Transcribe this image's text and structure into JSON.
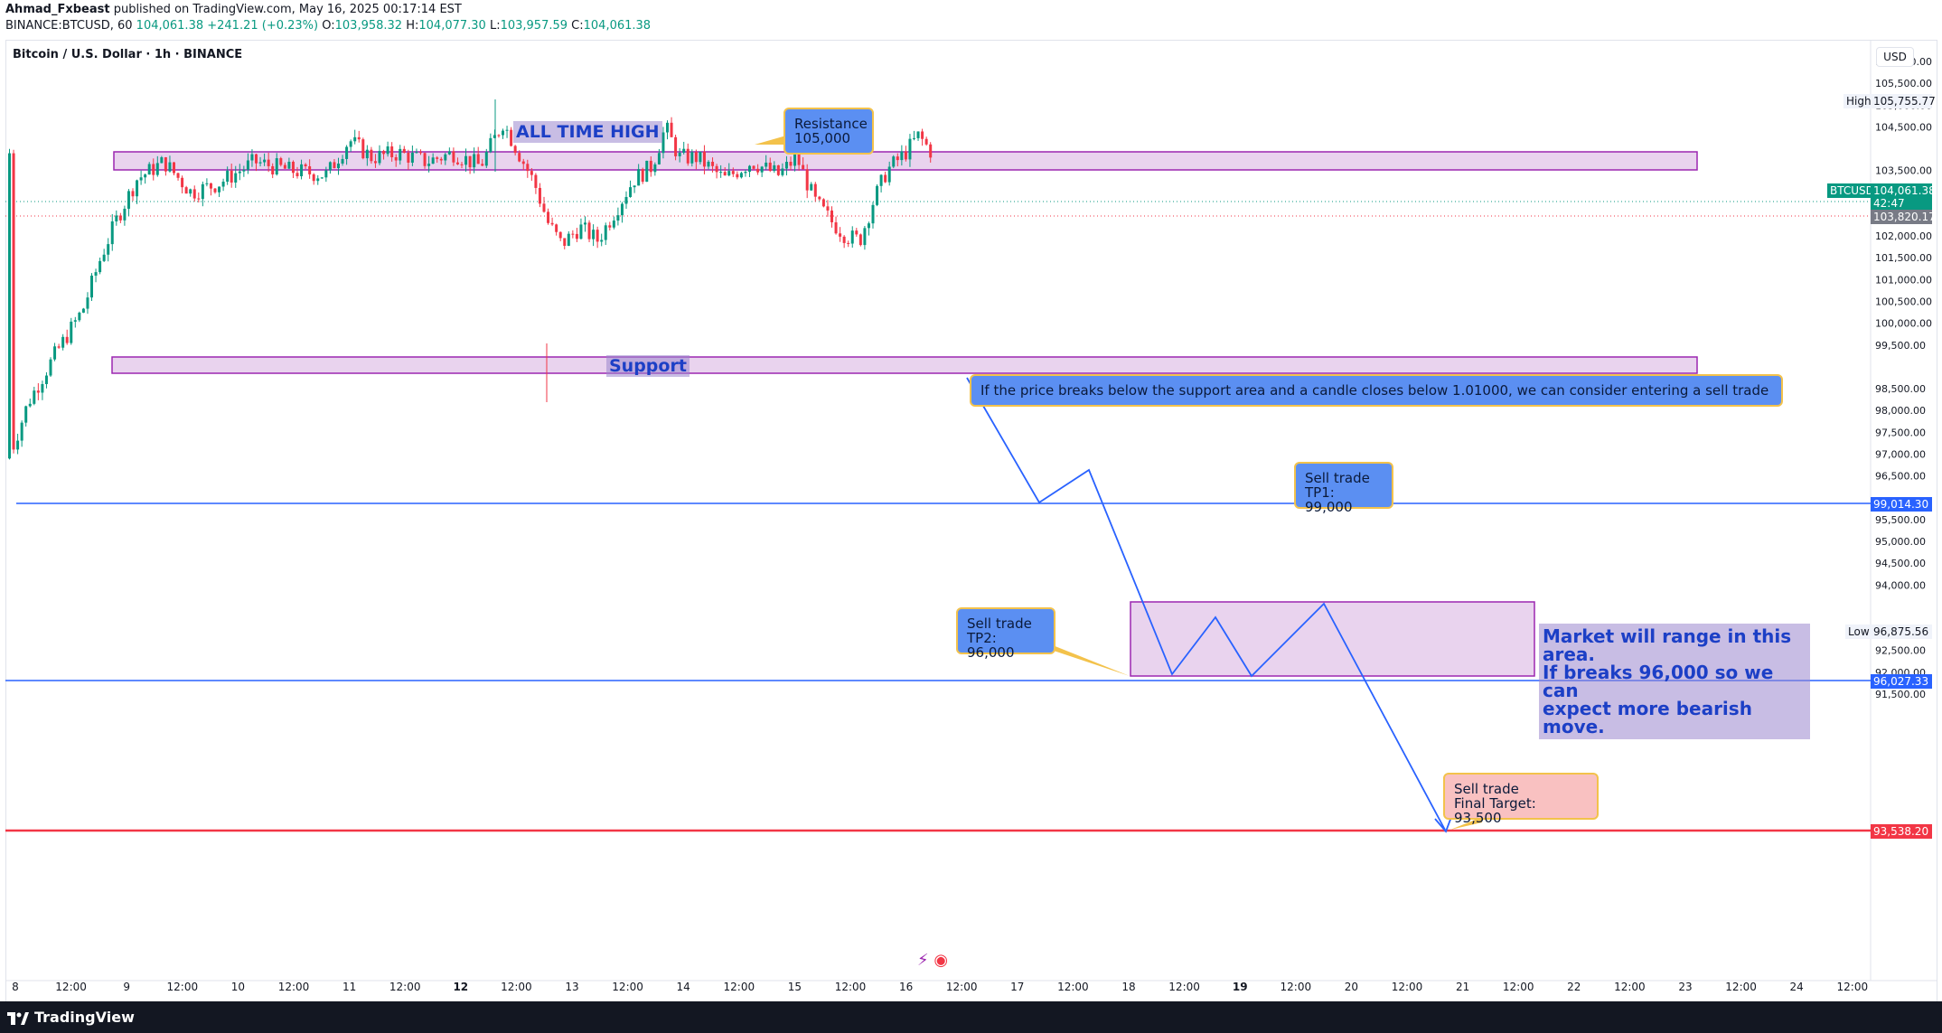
{
  "header": {
    "author": "Ahmad_Fxbeast",
    "published_text": "published on TradingView.com, May 16, 2025 00:17:14 EST",
    "symbol_line": "BINANCE:BTCUSD, 60",
    "last": "104,061.38",
    "change": "+241.21 (+0.23%)",
    "open_label": "O:",
    "open": "103,958.32",
    "high_label": "H:",
    "high": "104,077.30",
    "low_label": "L:",
    "low": "103,957.59",
    "close_label": "C:",
    "close": "104,061.38"
  },
  "chart_title": "Bitcoin / U.S. Dollar · 1h · BINANCE",
  "currency_button": "USD",
  "price_axis": {
    "ticks": [
      "106,000.00",
      "105,500.00",
      "105,000.00",
      "104,500.00",
      "103,500.00",
      "103,000.00",
      "102,500.00",
      "102,000.00",
      "101,500.00",
      "101,000.00",
      "100,500.00",
      "100,000.00",
      "99,500.00",
      "98,500.00",
      "98,000.00",
      "97,500.00",
      "97,000.00",
      "96,500.00",
      "95,500.00",
      "95,000.00",
      "94,500.00",
      "94,000.00",
      "93,000.00",
      "92,500.00",
      "92,000.00",
      "91,500.00"
    ],
    "high_label": "High",
    "high_value": "105,755.77",
    "low_label": "Low",
    "low_value": "96,875.56",
    "current_price": "104,061.38",
    "countdown": "42:47",
    "prev_close": "103,820.17",
    "level_tp1": "99,014.30",
    "level_tp2": "96,027.33",
    "level_final": "93,538.20",
    "symbol_tag": "BTCUSD"
  },
  "time_axis": [
    "8",
    "12:00",
    "9",
    "12:00",
    "10",
    "12:00",
    "11",
    "12:00",
    "12",
    "12:00",
    "13",
    "12:00",
    "14",
    "12:00",
    "15",
    "12:00",
    "16",
    "12:00",
    "17",
    "12:00",
    "18",
    "12:00",
    "19",
    "12:00",
    "20",
    "12:00",
    "21",
    "12:00",
    "22",
    "12:00",
    "23",
    "12:00",
    "24",
    "12:00"
  ],
  "annotations": {
    "all_time_high": "ALL TIME HIGH",
    "resistance": "Resistance\n105,000",
    "support": "Support",
    "breakdown_note": "If the price breaks below the support area and a candle closes below 1.01000, we can consider entering a sell trade",
    "tp1": "Sell trade\nTP1: 99,000",
    "tp2": "Sell trade\nTP2: 96,000",
    "range_note": "Market will range in this area.\nIf breaks 96,000 so we can\nexpect more bearish move.",
    "final": "Sell trade\nFinal Target: 93,500"
  },
  "colors": {
    "up": "#089981",
    "down": "#f23645",
    "zone_fill": "#e9d3ee",
    "zone_border": "#9c27b0",
    "blue_line": "#2962ff",
    "red_line": "#f23645"
  },
  "footer_brand": "TradingView"
}
